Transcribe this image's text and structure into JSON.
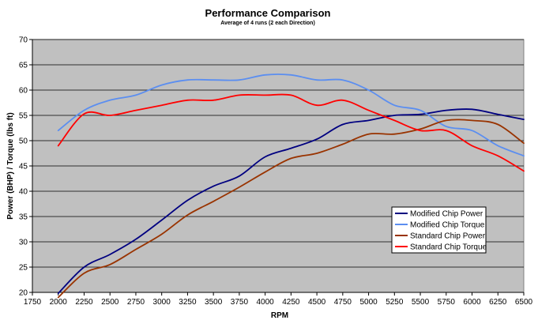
{
  "chart_data": {
    "type": "line",
    "title": "Performance Comparison",
    "subtitle": "Average of 4 runs (2 each Direction)",
    "xlabel": "RPM",
    "ylabel": "Power (BHP) / Torque (lbs ft)",
    "xlim": [
      1750,
      6500
    ],
    "ylim": [
      20,
      70
    ],
    "x_ticks": [
      1750,
      2000,
      2250,
      2500,
      2750,
      3000,
      3250,
      3500,
      3750,
      4000,
      4250,
      4500,
      4750,
      5000,
      5250,
      5500,
      5750,
      6000,
      6250,
      6500
    ],
    "y_ticks": [
      20,
      25,
      30,
      35,
      40,
      45,
      50,
      55,
      60,
      65,
      70
    ],
    "grid": true,
    "plot_background": "#c0c0c0",
    "legend_position": "bottom-right",
    "x": [
      2000,
      2250,
      2500,
      2750,
      3000,
      3250,
      3500,
      3750,
      4000,
      4250,
      4500,
      4750,
      5000,
      5250,
      5500,
      5750,
      6000,
      6250,
      6500
    ],
    "series": [
      {
        "name": "Modified Chip Power",
        "color": "#000080",
        "values": [
          19.8,
          25.0,
          27.5,
          30.5,
          34.3,
          38.2,
          41.0,
          43.0,
          46.8,
          48.5,
          50.3,
          53.2,
          54.0,
          55.0,
          55.2,
          56.0,
          56.2,
          55.2,
          54.2
        ]
      },
      {
        "name": "Modified Chip Torque",
        "color": "#5b8ef0",
        "values": [
          52.0,
          56.0,
          58.0,
          59.0,
          61.0,
          62.0,
          62.0,
          62.0,
          63.0,
          63.0,
          62.0,
          62.0,
          60.0,
          57.0,
          56.0,
          52.8,
          52.0,
          49.0,
          47.0
        ]
      },
      {
        "name": "Standard Chip Power",
        "color": "#993300",
        "values": [
          19.0,
          23.8,
          25.5,
          28.5,
          31.5,
          35.3,
          38.0,
          40.8,
          43.8,
          46.5,
          47.5,
          49.3,
          51.3,
          51.3,
          52.3,
          54.0,
          54.0,
          53.2,
          49.5
        ]
      },
      {
        "name": "Standard Chip Torque",
        "color": "#ff0000",
        "values": [
          49.0,
          55.3,
          55.0,
          56.0,
          57.0,
          58.0,
          58.0,
          59.0,
          59.0,
          59.0,
          57.0,
          58.0,
          56.0,
          54.0,
          52.0,
          52.0,
          49.0,
          47.0,
          44.0
        ]
      }
    ]
  }
}
